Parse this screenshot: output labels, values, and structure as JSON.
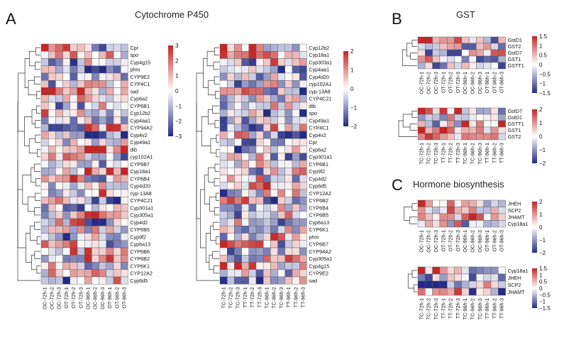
{
  "panels": {
    "a": "A",
    "b": "B",
    "c": "C"
  },
  "titles": {
    "a": "Cytochrome P450",
    "b": "GST",
    "c": "Hormone biosynthesis"
  },
  "chart_data": [
    {
      "id": "a1",
      "type": "heatmap",
      "panel": "A",
      "rows": [
        "Cpr",
        "spo",
        "Cyp4g15",
        "phm",
        "CYP9E2",
        "CYP4C1",
        "sad",
        "Cyp6a2",
        "CYP6B1",
        "Cyp12b2",
        "Cyp4aa1",
        "CYP94A2",
        "Cyp4v2",
        "Cyp49a1",
        "dib",
        "cyp102A1",
        "CYP6B7",
        "Cyp18a1",
        "CYP6B4",
        "Cyp4d20",
        "cyp-13A8",
        "CYP4C21",
        "Cyp301a1",
        "Cyp305a1",
        "Cyp4d2",
        "CYP6B5",
        "Cyp9f2",
        "Cyp6a13",
        "CYP6B6",
        "CYP6B2",
        "CYP6K1",
        "CYP12A2",
        "Cyp6d5"
      ],
      "columns": [
        "OC-72h-1",
        "OC-72h-2",
        "OC-72h-3",
        "OT-72h-1",
        "OT-72h-2",
        "OT-72h-3",
        "OC-96h-1",
        "OC-96h-2",
        "OC-96h-3",
        "OT-96h-1",
        "OT-96h-2",
        "OT-96h-3"
      ],
      "colorbar": {
        "min": -3,
        "max": 3,
        "ticks": [
          3,
          2,
          1,
          0,
          -1,
          -2,
          -3
        ]
      }
    },
    {
      "id": "a2",
      "type": "heatmap",
      "panel": "A",
      "rows": [
        "Cyp12b2",
        "Cyp18a1",
        "Cyp303a1",
        "Cyp4aa1",
        "Cyp4d20",
        "cyp102A1",
        "cyp-13A8",
        "CYP4C21",
        "dib",
        "spo",
        "Cyp49a1",
        "CYP4C1",
        "Cyp4v2",
        "Cpr",
        "Cyp6a2",
        "Cyp301a1",
        "CYP6B1",
        "Cyp9f2",
        "Cyp4d2",
        "Cyp6d5",
        "CYP12A2",
        "CYP6B2",
        "CYP6B4",
        "CYP6B5",
        "Cyp6a13",
        "CYP6K1",
        "phm",
        "CYP6B7",
        "CYP94A2",
        "Cyp305a1",
        "Cyp4g15",
        "CYP9E2",
        "sad"
      ],
      "columns": [
        "TC-72h-1",
        "TC-72h-2",
        "TC-72h-3",
        "TT-72h-1",
        "TT-72h-2",
        "TT-72h-3",
        "TC-96h-1",
        "TC-96h-2",
        "TC-96h-3",
        "TT-96h-1",
        "TT-96h-2",
        "TT-96h-3"
      ],
      "colorbar": {
        "min": -2,
        "max": 2,
        "ticks": [
          2,
          1,
          0,
          -1,
          -2
        ]
      }
    },
    {
      "id": "b1",
      "type": "heatmap",
      "panel": "B",
      "rows": [
        "GstD1",
        "GST2",
        "GstD7",
        "GST1",
        "GSTT1"
      ],
      "columns": [
        "OC-72h-1",
        "OC-72h-2",
        "OC-72h-3",
        "OT-72h-1",
        "OT-72h-2",
        "OT-72h-3",
        "OC-96h-1",
        "OC-96h-2",
        "OC-96h-3",
        "OT-96h-1",
        "OT-96h-2",
        "OT-96h-3"
      ],
      "colorbar": {
        "min": -1.5,
        "max": 1.5,
        "ticks": [
          1.5,
          1,
          0.5,
          0,
          -0.5,
          -1,
          -1.5
        ]
      }
    },
    {
      "id": "b2",
      "type": "heatmap",
      "panel": "B",
      "rows": [
        "GstD7",
        "GstD1",
        "GSTT1",
        "GST1",
        "GST2"
      ],
      "columns": [
        "TC-72h-1",
        "TC-72h-2",
        "TC-72h-3",
        "TT-72h-1",
        "TT-72h-2",
        "TT-72h-3",
        "TC-96h-1",
        "TC-96h-2",
        "TC-96h-3",
        "TT-96h-1",
        "TT-96h-2",
        "TT-96h-3"
      ],
      "colorbar": {
        "min": -2,
        "max": 2,
        "ticks": [
          2,
          1,
          0,
          -1,
          -2
        ]
      }
    },
    {
      "id": "c1",
      "type": "heatmap",
      "panel": "C",
      "rows": [
        "JHEH",
        "SCP2",
        "JHAMT",
        "Cyp18a1"
      ],
      "columns": [
        "OC-72h-1",
        "OC-72h-2",
        "OC-72h-3",
        "OT-72h-1",
        "OT-72h-2",
        "OT-72h-3",
        "OC-96h-1",
        "OC-96h-2",
        "OC-96h-3",
        "OT-96h-1",
        "OT-96h-2",
        "OT-96h-3"
      ],
      "colorbar": {
        "min": -2,
        "max": 2,
        "ticks": [
          2,
          1,
          0,
          -1,
          -2
        ]
      }
    },
    {
      "id": "c2",
      "type": "heatmap",
      "panel": "C",
      "rows": [
        "Cyp18a1",
        "JHEH",
        "SCP2",
        "JHAMT"
      ],
      "columns": [
        "TC-72h-1",
        "TC-72h-2",
        "TC-72h-3",
        "TT-72h-1",
        "TT-72h-2",
        "TT-72h-3",
        "TC-96h-1",
        "TC-96h-2",
        "TC-96h-3",
        "TT-96h-1",
        "TT-96h-2",
        "TT-96h-3"
      ],
      "colorbar": {
        "min": -1.5,
        "max": 1.5,
        "ticks": [
          1.5,
          1,
          0.5,
          0,
          -0.5,
          -1,
          -1.5
        ]
      }
    }
  ]
}
